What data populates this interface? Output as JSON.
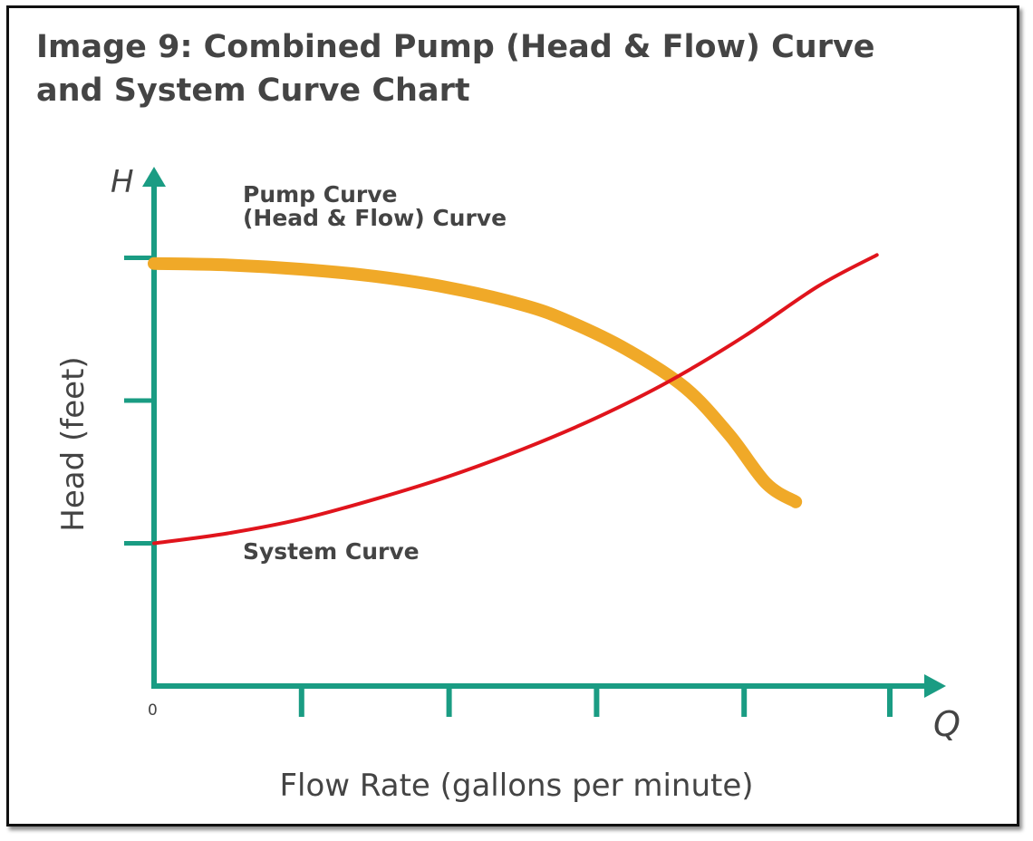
{
  "title_line1": "Image 9: Combined Pump (Head & Flow) Curve",
  "title_line2": "and System Curve Chart",
  "chart_data": {
    "type": "line",
    "ylabel": "Head (feet)",
    "xlabel": "Flow Rate (gallons per minute)",
    "y_axis_symbol": "H",
    "x_axis_symbol": "Q",
    "x_origin_label": "0",
    "xlim": [
      0,
      5
    ],
    "ylim": [
      0,
      3.6
    ],
    "x_ticks": [
      1,
      2,
      3,
      4,
      5
    ],
    "y_ticks": [
      1,
      2,
      3
    ],
    "grid": false,
    "series": [
      {
        "name": "Pump Curve (Head & Flow) Curve",
        "label_lines": [
          "Pump Curve",
          "(Head & Flow) Curve"
        ],
        "color": "#f0a928",
        "x": [
          0,
          0.5,
          1,
          1.5,
          2,
          2.5,
          2.8,
          3.2,
          3.6,
          3.9,
          4.15,
          4.35
        ],
        "y": [
          2.96,
          2.95,
          2.92,
          2.87,
          2.79,
          2.67,
          2.56,
          2.36,
          2.09,
          1.76,
          1.42,
          1.29
        ]
      },
      {
        "name": "System Curve",
        "label_lines": [
          "System Curve"
        ],
        "color": "#e0141c",
        "x": [
          0,
          0.5,
          1,
          1.5,
          2,
          2.5,
          3,
          3.5,
          4,
          4.5,
          4.9
        ],
        "y": [
          1.0,
          1.07,
          1.17,
          1.31,
          1.47,
          1.66,
          1.88,
          2.14,
          2.45,
          2.8,
          3.02
        ]
      }
    ],
    "axis_color": "#1a9c83"
  }
}
